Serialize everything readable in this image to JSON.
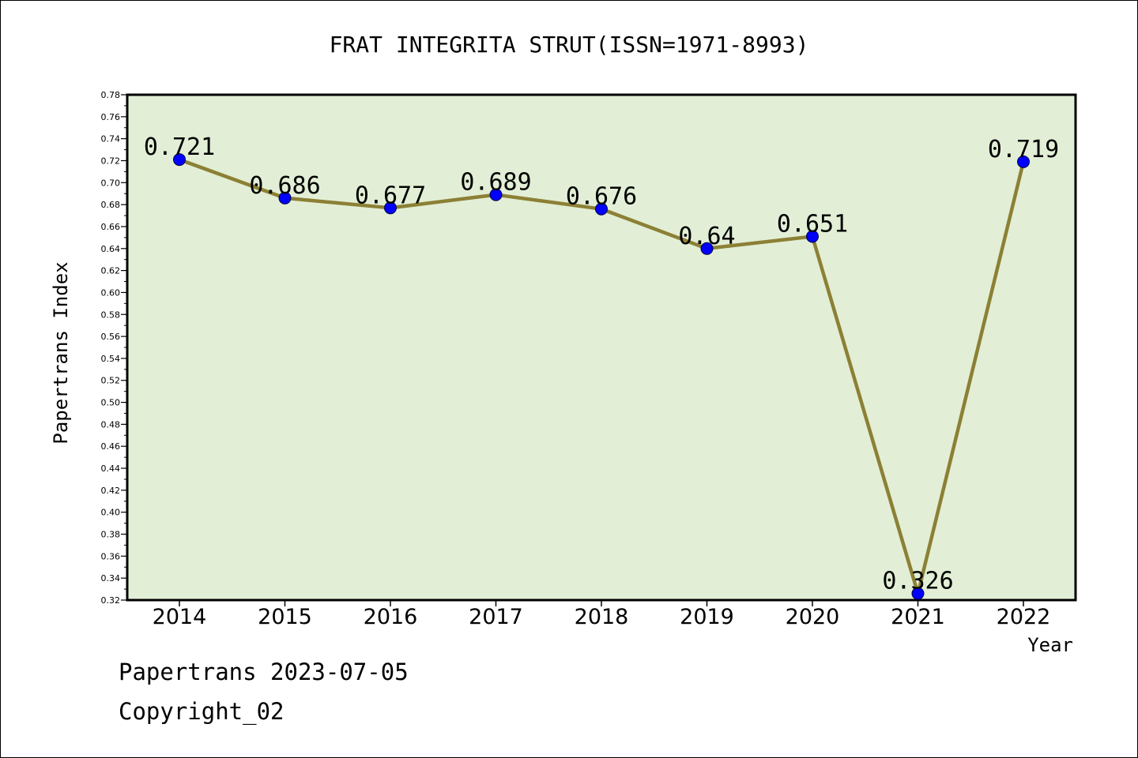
{
  "chart_data": {
    "type": "line",
    "title": "FRAT INTEGRITA STRUT(ISSN=1971-8993)",
    "xlabel": "Year",
    "ylabel": "Papertrans Index",
    "categories": [
      "2014",
      "2015",
      "2016",
      "2017",
      "2018",
      "2019",
      "2020",
      "2021",
      "2022"
    ],
    "series": [
      {
        "values": [
          0.721,
          0.686,
          0.677,
          0.689,
          0.676,
          0.64,
          0.651,
          0.326,
          0.719
        ],
        "labels": [
          "0.721",
          "0.686",
          "0.677",
          "0.689",
          "0.676",
          "0.64",
          "0.651",
          "0.326",
          "0.719"
        ]
      }
    ],
    "ylim": [
      0.32,
      0.78
    ],
    "yticks": [
      "0.32",
      "0.34",
      "0.36",
      "0.38",
      "0.40",
      "0.42",
      "0.44",
      "0.46",
      "0.48",
      "0.50",
      "0.52",
      "0.54",
      "0.56",
      "0.58",
      "0.60",
      "0.62",
      "0.64",
      "0.66",
      "0.68",
      "0.70",
      "0.72",
      "0.74",
      "0.76",
      "0.78"
    ],
    "grid": false,
    "legend": "none",
    "colors": {
      "plot_background": "#e2efd6",
      "line": "#8c8035",
      "marker": "#0000ff"
    }
  },
  "footer": {
    "line1": "Papertrans 2023-07-05",
    "line2": "Copyright_02"
  }
}
